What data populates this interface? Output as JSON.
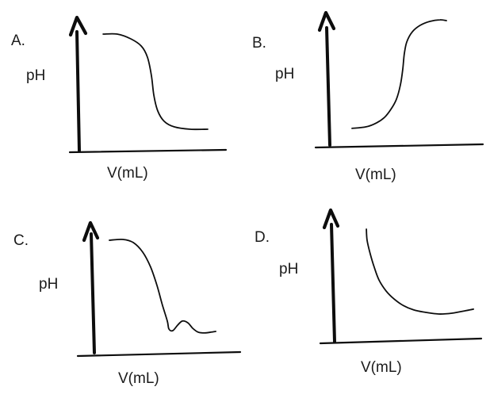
{
  "figure": {
    "background_color": "#ffffff",
    "line_color": "#0d0d0d",
    "text_color": "#1b1b1b",
    "panels": [
      {
        "id": "A",
        "label": "A.",
        "y_axis_label": "pH",
        "x_axis_label": "V(mL)"
      },
      {
        "id": "B",
        "label": "B.",
        "y_axis_label": "pH",
        "x_axis_label": "V(mL)"
      },
      {
        "id": "C",
        "label": "C.",
        "y_axis_label": "pH",
        "x_axis_label": "V(mL)"
      },
      {
        "id": "D",
        "label": "D.",
        "y_axis_label": "pH",
        "x_axis_label": "V(mL)"
      }
    ]
  },
  "chart_data": [
    {
      "panel": "A",
      "type": "line",
      "title": "",
      "xlabel": "V(mL)",
      "ylabel": "pH",
      "curve_shape": "sigmoid-decreasing",
      "description": "pH starts high and flat, drops steeply at a single equivalence point, then levels off low",
      "x_ticks": [],
      "y_ticks": [],
      "axes_numeric": false,
      "points_normalized": [
        [
          0.167,
          0.908
        ],
        [
          0.26,
          0.908
        ],
        [
          0.349,
          0.871
        ],
        [
          0.417,
          0.816
        ],
        [
          0.458,
          0.73
        ],
        [
          0.484,
          0.589
        ],
        [
          0.5,
          0.436
        ],
        [
          0.526,
          0.313
        ],
        [
          0.568,
          0.233
        ],
        [
          0.635,
          0.19
        ],
        [
          0.74,
          0.172
        ],
        [
          0.854,
          0.172
        ]
      ]
    },
    {
      "panel": "B",
      "type": "line",
      "title": "",
      "xlabel": "V(mL)",
      "ylabel": "pH",
      "curve_shape": "sigmoid-increasing",
      "description": "pH starts low and flat, rises steeply at a single equivalence point, then levels off high",
      "x_ticks": [],
      "y_ticks": [],
      "axes_numeric": false,
      "points_normalized": [
        [
          0.159,
          0.133
        ],
        [
          0.251,
          0.145
        ],
        [
          0.318,
          0.175
        ],
        [
          0.369,
          0.217
        ],
        [
          0.41,
          0.277
        ],
        [
          0.446,
          0.355
        ],
        [
          0.472,
          0.464
        ],
        [
          0.487,
          0.584
        ],
        [
          0.497,
          0.699
        ],
        [
          0.513,
          0.789
        ],
        [
          0.549,
          0.867
        ],
        [
          0.6,
          0.916
        ],
        [
          0.662,
          0.946
        ],
        [
          0.728,
          0.958
        ],
        [
          0.769,
          0.952
        ]
      ]
    },
    {
      "panel": "C",
      "type": "line",
      "title": "",
      "xlabel": "V(mL)",
      "ylabel": "pH",
      "curve_shape": "decreasing-with-bump",
      "description": "pH starts high, falls steeply, dips to a local minimum, rises in a small bump, then flattens low",
      "x_ticks": [],
      "y_ticks": [],
      "axes_numeric": false,
      "points_normalized": [
        [
          0.118,
          0.873
        ],
        [
          0.21,
          0.879
        ],
        [
          0.28,
          0.855
        ],
        [
          0.344,
          0.782
        ],
        [
          0.398,
          0.667
        ],
        [
          0.441,
          0.527
        ],
        [
          0.478,
          0.376
        ],
        [
          0.511,
          0.255
        ],
        [
          0.522,
          0.194
        ],
        [
          0.548,
          0.182
        ],
        [
          0.581,
          0.224
        ],
        [
          0.613,
          0.255
        ],
        [
          0.65,
          0.242
        ],
        [
          0.683,
          0.2
        ],
        [
          0.72,
          0.17
        ],
        [
          0.763,
          0.164
        ],
        [
          0.806,
          0.17
        ],
        [
          0.839,
          0.176
        ]
      ]
    },
    {
      "panel": "D",
      "type": "line",
      "title": "",
      "xlabel": "V(mL)",
      "ylabel": "pH",
      "curve_shape": "hyperbolic-decay",
      "description": "pH starts high and decreases smoothly, leveling off asymptotically with a slight upturn at the end",
      "x_ticks": [],
      "y_ticks": [],
      "axes_numeric": false,
      "points_normalized": [
        [
          0.225,
          0.846
        ],
        [
          0.23,
          0.763
        ],
        [
          0.251,
          0.663
        ],
        [
          0.278,
          0.562
        ],
        [
          0.31,
          0.467
        ],
        [
          0.358,
          0.385
        ],
        [
          0.412,
          0.325
        ],
        [
          0.471,
          0.278
        ],
        [
          0.545,
          0.243
        ],
        [
          0.626,
          0.225
        ],
        [
          0.711,
          0.213
        ],
        [
          0.802,
          0.219
        ],
        [
          0.893,
          0.237
        ],
        [
          0.947,
          0.249
        ]
      ]
    }
  ]
}
